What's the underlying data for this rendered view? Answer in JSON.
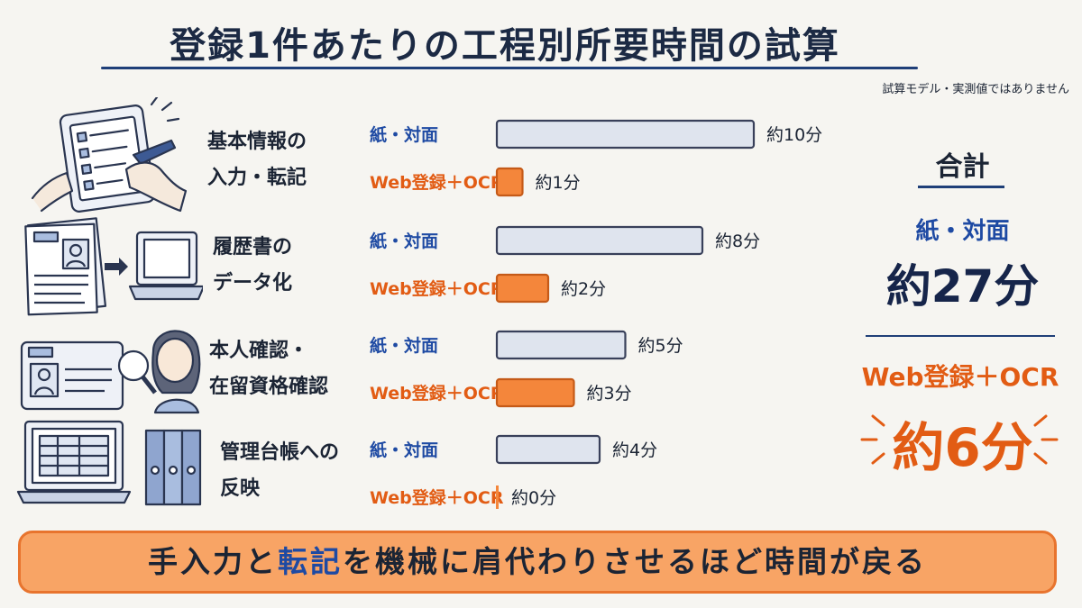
{
  "page": {
    "title": "登録1件あたりの工程別所要時間の試算",
    "note": "試算モデル・実測値ではありません"
  },
  "colors": {
    "paper_bar_fill": "#dfe4ee",
    "paper_bar_stroke": "#39405a",
    "web_bar_fill": "#f4863b",
    "web_bar_stroke": "#c55a18",
    "accent_blue": "#1e4aa3",
    "accent_orange": "#e25c14",
    "banner_fill": "#f8a465"
  },
  "tasks": [
    {
      "label_line1": "基本情報の",
      "label_line2": "入力・転記",
      "icon": "tablet-form-icon"
    },
    {
      "label_line1": "履歴書の",
      "label_line2": "データ化",
      "icon": "resume-to-laptop-icon"
    },
    {
      "label_line1": "本人確認・",
      "label_line2": "在留資格確認",
      "icon": "id-card-magnifier-icon"
    },
    {
      "label_line1": "管理台帳への",
      "label_line2": "反映",
      "icon": "laptop-binders-icon"
    }
  ],
  "chart_data": {
    "type": "bar",
    "orientation": "horizontal",
    "categories": [
      "基本情報の入力・転記",
      "履歴書のデータ化",
      "本人確認・在留資格確認",
      "管理台帳への反映"
    ],
    "series": [
      {
        "name": "紙・対面",
        "values": [
          10,
          8,
          5,
          4
        ],
        "value_labels": [
          "約10分",
          "約8分",
          "約5分",
          "約4分"
        ]
      },
      {
        "name": "Web登録＋OCR",
        "values": [
          1,
          2,
          3,
          0
        ],
        "value_labels": [
          "約1分",
          "約2分",
          "約3分",
          "約0分"
        ]
      }
    ],
    "unit": "分"
  },
  "totals": {
    "heading": "合計",
    "paper_label": "紙・対面",
    "paper_value": "約27分",
    "web_label": "Web登録＋OCR",
    "web_value": "約6分"
  },
  "banner": {
    "text_before": "手入力と",
    "text_highlight": "転記",
    "text_after": "を機械に肩代わりさせるほど時間が戻る"
  }
}
